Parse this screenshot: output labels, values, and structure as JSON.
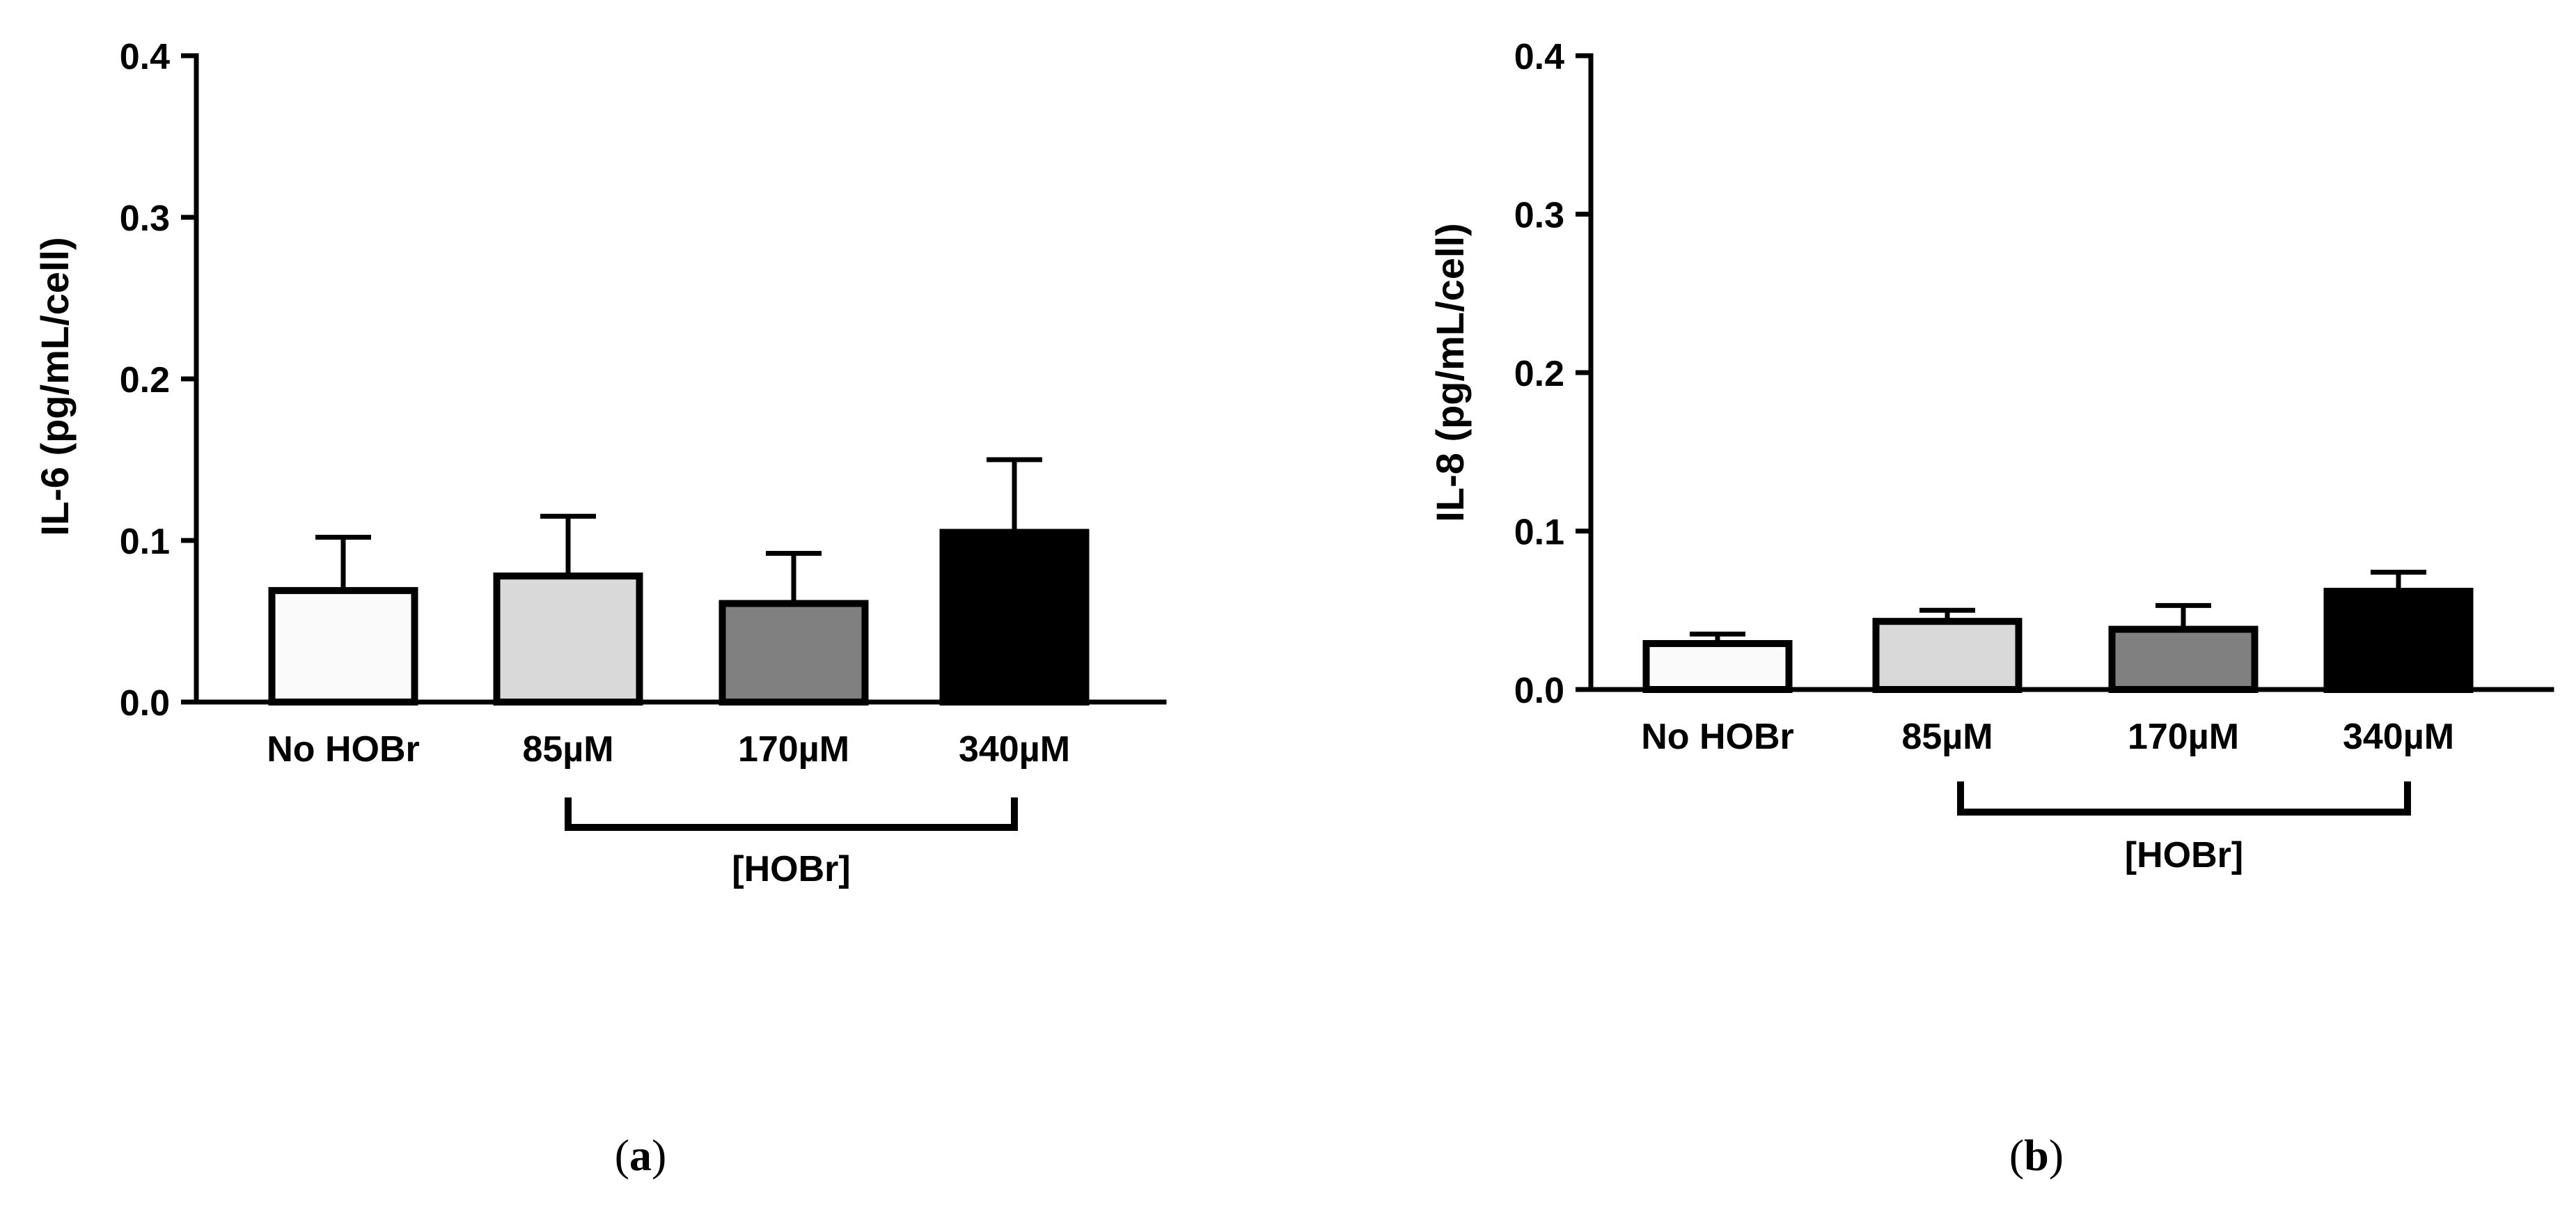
{
  "chart_data": [
    {
      "type": "bar",
      "ylabel": "IL-6 (pg/mL/cell)",
      "ylim": [
        0,
        0.4
      ],
      "yticks": [
        "0.0",
        "0.1",
        "0.2",
        "0.3",
        "0.4"
      ],
      "categories": [
        "No HOBr",
        "85µM",
        "170µM",
        "340µM"
      ],
      "values": [
        0.069,
        0.078,
        0.061,
        0.105
      ],
      "errors": [
        0.033,
        0.037,
        0.031,
        0.045
      ],
      "colors": [
        "#fafafa",
        "#d9d9d9",
        "#808080",
        "#000000"
      ],
      "group_label": "[HOBr]",
      "panel": {
        "open": "(",
        "letter": "a",
        "close": ")"
      }
    },
    {
      "type": "bar",
      "ylabel": "IL-8 (pg/mL/cell)",
      "ylim": [
        0,
        0.4
      ],
      "yticks": [
        "0.0",
        "0.1",
        "0.2",
        "0.3",
        "0.4"
      ],
      "categories": [
        "No HOBr",
        "85µM",
        "170µM",
        "340µM"
      ],
      "values": [
        0.029,
        0.043,
        0.038,
        0.062
      ],
      "errors": [
        0.006,
        0.007,
        0.015,
        0.012
      ],
      "colors": [
        "#fafafa",
        "#d9d9d9",
        "#808080",
        "#000000"
      ],
      "group_label": "[HOBr]",
      "panel": {
        "open": "(",
        "letter": "b",
        "close": ")"
      }
    }
  ]
}
